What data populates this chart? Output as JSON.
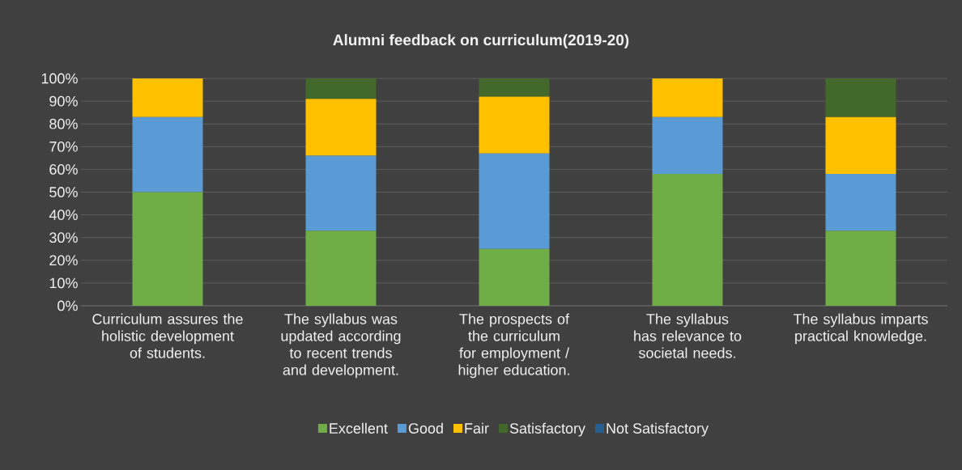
{
  "chart_data": {
    "type": "bar",
    "stacked": true,
    "title": "Alumni feedback on curriculum(2019-20)",
    "categories": [
      "Curriculum assures the holistic development of students.",
      "The syllabus was updated according to recent trends and development.",
      "The prospects of the curriculum for employment / higher education.",
      "The syllabus has relevance to societal needs.",
      "The syllabus imparts practical knowledge."
    ],
    "series": [
      {
        "name": "Excellent",
        "color": "#70ad47",
        "values": [
          50,
          33,
          25,
          58,
          33
        ]
      },
      {
        "name": "Good",
        "color": "#5b9bd5",
        "values": [
          33,
          33,
          42,
          25,
          25
        ]
      },
      {
        "name": "Fair",
        "color": "#ffc000",
        "values": [
          17,
          25,
          25,
          17,
          25
        ]
      },
      {
        "name": "Satisfactory",
        "color": "#43682b",
        "values": [
          0,
          9,
          8,
          0,
          17
        ]
      },
      {
        "name": "Not Satisfactory",
        "color": "#255e91",
        "values": [
          0,
          0,
          0,
          0,
          0
        ]
      }
    ],
    "ylim": [
      0,
      100
    ],
    "yticks": [
      {
        "value": 0,
        "label": "0%"
      },
      {
        "value": 10,
        "label": "10%"
      },
      {
        "value": 20,
        "label": "20%"
      },
      {
        "value": 30,
        "label": "30%"
      },
      {
        "value": 40,
        "label": "40%"
      },
      {
        "value": 50,
        "label": "50%"
      },
      {
        "value": 60,
        "label": "60%"
      },
      {
        "value": 70,
        "label": "70%"
      },
      {
        "value": 80,
        "label": "80%"
      },
      {
        "value": 90,
        "label": "90%"
      },
      {
        "value": 100,
        "label": "100%"
      }
    ],
    "grid": "y",
    "legend": "bottom"
  }
}
